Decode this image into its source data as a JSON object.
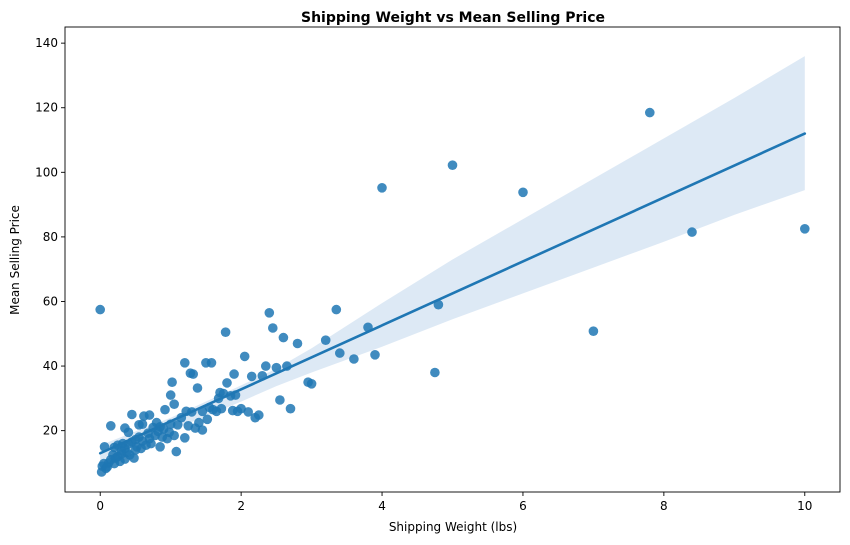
{
  "chart_data": {
    "type": "scatter",
    "title": "Shipping Weight vs Mean Selling Price",
    "xlabel": "Shipping Weight (lbs)",
    "ylabel": "Mean Selling Price",
    "xlim": [
      -0.5,
      10.5
    ],
    "ylim": [
      1,
      145
    ],
    "xticks": [
      0,
      2,
      4,
      6,
      8,
      10
    ],
    "yticks": [
      20,
      40,
      60,
      80,
      100,
      120,
      140
    ],
    "grid": false,
    "colors": {
      "points": "#1f77b4",
      "line": "#1f77b4",
      "band": "#c6dbef"
    },
    "points": [
      [
        0.0,
        57.5
      ],
      [
        0.02,
        7.2
      ],
      [
        0.03,
        9.0
      ],
      [
        0.05,
        9.8
      ],
      [
        0.06,
        15.0
      ],
      [
        0.08,
        8.3
      ],
      [
        0.1,
        8.8
      ],
      [
        0.12,
        10.0
      ],
      [
        0.15,
        11.0
      ],
      [
        0.15,
        21.5
      ],
      [
        0.18,
        12.5
      ],
      [
        0.2,
        9.8
      ],
      [
        0.2,
        14.8
      ],
      [
        0.22,
        11.5
      ],
      [
        0.25,
        12.0
      ],
      [
        0.25,
        15.5
      ],
      [
        0.28,
        10.5
      ],
      [
        0.3,
        13.8
      ],
      [
        0.3,
        12.8
      ],
      [
        0.32,
        16.0
      ],
      [
        0.35,
        11.2
      ],
      [
        0.35,
        14.5
      ],
      [
        0.35,
        20.8
      ],
      [
        0.38,
        13.2
      ],
      [
        0.4,
        19.5
      ],
      [
        0.4,
        15.8
      ],
      [
        0.42,
        12.5
      ],
      [
        0.45,
        16.5
      ],
      [
        0.45,
        25.0
      ],
      [
        0.48,
        11.5
      ],
      [
        0.5,
        14.0
      ],
      [
        0.5,
        17.2
      ],
      [
        0.52,
        15.0
      ],
      [
        0.55,
        21.8
      ],
      [
        0.55,
        18.0
      ],
      [
        0.58,
        14.5
      ],
      [
        0.6,
        16.8
      ],
      [
        0.6,
        22.0
      ],
      [
        0.62,
        24.5
      ],
      [
        0.65,
        15.5
      ],
      [
        0.68,
        19.2
      ],
      [
        0.7,
        17.5
      ],
      [
        0.7,
        24.8
      ],
      [
        0.72,
        16.0
      ],
      [
        0.75,
        21.0
      ],
      [
        0.78,
        18.5
      ],
      [
        0.8,
        22.5
      ],
      [
        0.82,
        19.8
      ],
      [
        0.85,
        15.0
      ],
      [
        0.85,
        21.2
      ],
      [
        0.88,
        18.0
      ],
      [
        0.9,
        20.5
      ],
      [
        0.92,
        26.5
      ],
      [
        0.95,
        17.5
      ],
      [
        0.98,
        19.5
      ],
      [
        1.0,
        31.0
      ],
      [
        1.0,
        22.0
      ],
      [
        1.02,
        35.0
      ],
      [
        1.05,
        18.5
      ],
      [
        1.05,
        28.2
      ],
      [
        1.08,
        13.5
      ],
      [
        1.1,
        21.8
      ],
      [
        1.15,
        24.0
      ],
      [
        1.2,
        41.0
      ],
      [
        1.2,
        17.8
      ],
      [
        1.22,
        26.0
      ],
      [
        1.25,
        21.5
      ],
      [
        1.28,
        37.8
      ],
      [
        1.3,
        25.8
      ],
      [
        1.32,
        37.5
      ],
      [
        1.35,
        20.8
      ],
      [
        1.38,
        33.2
      ],
      [
        1.4,
        22.5
      ],
      [
        1.45,
        26.0
      ],
      [
        1.45,
        20.2
      ],
      [
        1.5,
        41.0
      ],
      [
        1.52,
        23.5
      ],
      [
        1.55,
        27.2
      ],
      [
        1.58,
        41.0
      ],
      [
        1.6,
        26.5
      ],
      [
        1.65,
        26.0
      ],
      [
        1.68,
        30.0
      ],
      [
        1.7,
        31.8
      ],
      [
        1.72,
        26.8
      ],
      [
        1.75,
        31.5
      ],
      [
        1.78,
        50.5
      ],
      [
        1.8,
        34.8
      ],
      [
        1.85,
        30.8
      ],
      [
        1.88,
        26.2
      ],
      [
        1.9,
        37.5
      ],
      [
        1.92,
        31.0
      ],
      [
        1.95,
        26.0
      ],
      [
        2.0,
        26.8
      ],
      [
        2.05,
        43.0
      ],
      [
        2.1,
        25.8
      ],
      [
        2.15,
        36.8
      ],
      [
        2.2,
        24.0
      ],
      [
        2.25,
        24.8
      ],
      [
        2.3,
        37.0
      ],
      [
        2.35,
        40.0
      ],
      [
        2.4,
        56.5
      ],
      [
        2.45,
        51.8
      ],
      [
        2.5,
        39.5
      ],
      [
        2.55,
        29.5
      ],
      [
        2.6,
        48.8
      ],
      [
        2.65,
        40.0
      ],
      [
        2.7,
        26.8
      ],
      [
        2.8,
        47.0
      ],
      [
        2.95,
        35.0
      ],
      [
        3.0,
        34.5
      ],
      [
        3.2,
        48.0
      ],
      [
        3.35,
        57.5
      ],
      [
        3.4,
        44.0
      ],
      [
        3.6,
        42.2
      ],
      [
        3.8,
        52.0
      ],
      [
        3.9,
        43.5
      ],
      [
        4.0,
        95.2
      ],
      [
        4.75,
        38.0
      ],
      [
        4.8,
        59.0
      ],
      [
        5.0,
        102.2
      ],
      [
        6.0,
        93.8
      ],
      [
        7.0,
        50.8
      ],
      [
        7.8,
        118.5
      ],
      [
        8.4,
        81.5
      ],
      [
        10.0,
        82.5
      ]
    ],
    "regression": {
      "x0": 0.0,
      "y0": 13.0,
      "x1": 10.0,
      "y1": 112.0
    },
    "confidence_band": {
      "x": [
        0.0,
        1.0,
        2.0,
        2.5,
        3.0,
        4.0,
        5.0,
        6.0,
        7.0,
        8.0,
        9.0,
        10.0
      ],
      "upper": [
        15.5,
        24.0,
        34.0,
        39.2,
        45.5,
        59.5,
        73.0,
        85.5,
        98.0,
        110.5,
        123.0,
        136.0
      ],
      "lower": [
        10.5,
        20.0,
        29.0,
        33.8,
        38.0,
        46.0,
        54.5,
        62.5,
        70.5,
        78.5,
        86.8,
        94.5
      ]
    }
  }
}
